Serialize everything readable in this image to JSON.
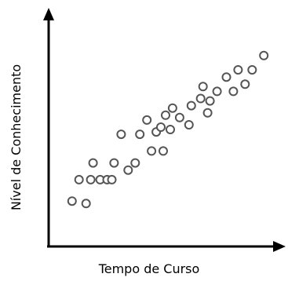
{
  "chart_data": {
    "type": "scatter",
    "title": "",
    "xlabel": "Tempo de Curso",
    "ylabel": "Nível de Conhecimento",
    "ticks": false,
    "grid": false,
    "legend": "none",
    "points": [
      {
        "x": 0.1,
        "y": 0.19
      },
      {
        "x": 0.13,
        "y": 0.28
      },
      {
        "x": 0.16,
        "y": 0.18
      },
      {
        "x": 0.18,
        "y": 0.28
      },
      {
        "x": 0.19,
        "y": 0.35
      },
      {
        "x": 0.22,
        "y": 0.28
      },
      {
        "x": 0.25,
        "y": 0.28
      },
      {
        "x": 0.27,
        "y": 0.28
      },
      {
        "x": 0.28,
        "y": 0.35
      },
      {
        "x": 0.31,
        "y": 0.47
      },
      {
        "x": 0.34,
        "y": 0.32
      },
      {
        "x": 0.37,
        "y": 0.35
      },
      {
        "x": 0.39,
        "y": 0.47
      },
      {
        "x": 0.42,
        "y": 0.53
      },
      {
        "x": 0.44,
        "y": 0.4
      },
      {
        "x": 0.46,
        "y": 0.48
      },
      {
        "x": 0.48,
        "y": 0.5
      },
      {
        "x": 0.49,
        "y": 0.4
      },
      {
        "x": 0.5,
        "y": 0.55
      },
      {
        "x": 0.52,
        "y": 0.49
      },
      {
        "x": 0.53,
        "y": 0.58
      },
      {
        "x": 0.56,
        "y": 0.54
      },
      {
        "x": 0.6,
        "y": 0.51
      },
      {
        "x": 0.61,
        "y": 0.59
      },
      {
        "x": 0.65,
        "y": 0.62
      },
      {
        "x": 0.66,
        "y": 0.67
      },
      {
        "x": 0.68,
        "y": 0.56
      },
      {
        "x": 0.69,
        "y": 0.61
      },
      {
        "x": 0.72,
        "y": 0.65
      },
      {
        "x": 0.76,
        "y": 0.71
      },
      {
        "x": 0.79,
        "y": 0.65
      },
      {
        "x": 0.81,
        "y": 0.74
      },
      {
        "x": 0.84,
        "y": 0.68
      },
      {
        "x": 0.87,
        "y": 0.74
      },
      {
        "x": 0.92,
        "y": 0.8
      }
    ],
    "colors": {
      "axis": "#000000",
      "marker_stroke": "#555555",
      "marker_fill": "#ffffff"
    }
  }
}
